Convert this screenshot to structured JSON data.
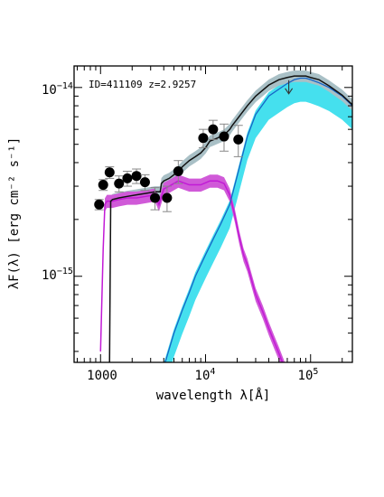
{
  "chart_data": {
    "type": "line",
    "title": "",
    "annotation": "ID=411109 z=2.9257",
    "xlabel": "wavelength λ[Å]",
    "ylabel": "λF(λ) [erg cm⁻² s⁻¹]",
    "x_scale": "log",
    "y_scale": "log",
    "xlim": [
      560,
      250000
    ],
    "ylim": [
      3.5e-16,
      1.3e-14
    ],
    "xticks": [
      {
        "value": 1000,
        "label": "1000"
      },
      {
        "value": 10000,
        "base": "10",
        "exp": "4"
      },
      {
        "value": 100000,
        "base": "10",
        "exp": "5"
      }
    ],
    "yticks": [
      {
        "value": 1e-15,
        "base": "10",
        "exp": "−15"
      },
      {
        "value": 1e-14,
        "base": "10",
        "exp": "−14"
      }
    ],
    "colors": {
      "stellar": "#c21ad6",
      "stellar_band": "#d05ad8",
      "dust": "#1565c8",
      "dust_band": "#45e0ee",
      "total": "#111111",
      "total_band": "#a9c0c6",
      "points": "#000000",
      "errorbars": "#888888"
    },
    "series": [
      {
        "x": [
          1000,
          1060,
          1100,
          1150,
          1216,
          1300,
          1500,
          1800,
          2200,
          2700,
          3300,
          3600,
          4000,
          4500,
          5500,
          7000,
          9000,
          11000,
          13000,
          15000,
          17000,
          19000,
          21000,
          23000,
          25000,
          30000,
          35000,
          40000,
          45000,
          50000,
          60000
        ],
        "y": [
          4e-16,
          1.4e-15,
          2.4e-15,
          2.5e-15,
          2.5e-15,
          2.5e-15,
          2.55e-15,
          2.6e-15,
          2.6e-15,
          2.65e-15,
          2.7e-15,
          2.4e-15,
          2.9e-15,
          3e-15,
          3.2e-15,
          3.05e-15,
          3.05e-15,
          3.2e-15,
          3.2e-15,
          3.1e-15,
          2.7e-15,
          2.1e-15,
          1.6e-15,
          1.3e-15,
          1.15e-15,
          8e-16,
          6.5e-16,
          5.3e-16,
          4.5e-16,
          3.9e-16,
          3e-16
        ],
        "band_fraction": 0.08
      },
      {
        "x": [
          3500,
          4000,
          5000,
          6000,
          7000,
          8000,
          10000,
          12000,
          14000,
          17000,
          20000,
          25000,
          30000,
          40000,
          50000,
          60000,
          70000,
          80000,
          90000,
          100000,
          120000,
          150000,
          200000,
          250000
        ],
        "y": [
          2e-16,
          3.3e-16,
          5e-16,
          6.6e-16,
          8.2e-16,
          1e-15,
          1.3e-15,
          1.6e-15,
          1.9e-15,
          2.4e-15,
          3.4e-15,
          5.5e-15,
          7.2e-15,
          9e-15,
          9.8e-15,
          1.05e-14,
          1.1e-14,
          1.12e-14,
          1.12e-14,
          1.1e-14,
          1.06e-14,
          1e-14,
          9e-15,
          8e-15
        ],
        "band_fraction_low": 0.25,
        "band_fraction_high": 0.05
      },
      {
        "x": [
          1216,
          1250,
          1300,
          1500,
          1800,
          2200,
          2700,
          3300,
          3700,
          3800,
          4000,
          4500,
          5000,
          5500,
          6000,
          7000,
          8000,
          9000,
          10000,
          11000,
          12000,
          13000,
          14000,
          15000,
          16000,
          17000,
          18000,
          20000,
          25000,
          30000,
          40000,
          50000,
          60000,
          70000,
          80000,
          90000,
          100000,
          120000,
          150000,
          200000,
          250000
        ],
        "y": [
          3e-16,
          2.5e-15,
          2.55e-15,
          2.6e-15,
          2.65e-15,
          2.7e-15,
          2.75e-15,
          2.8e-15,
          2.8e-15,
          3.1e-15,
          3.2e-15,
          3.3e-15,
          3.45e-15,
          3.6e-15,
          3.8e-15,
          4.1e-15,
          4.3e-15,
          4.5e-15,
          4.8e-15,
          5.2e-15,
          5.3e-15,
          5.4e-15,
          5.5e-15,
          5.6e-15,
          5.8e-15,
          6e-15,
          6.3e-15,
          6.8e-15,
          8e-15,
          9e-15,
          1.03e-14,
          1.1e-14,
          1.13e-14,
          1.15e-14,
          1.15e-14,
          1.15e-14,
          1.13e-14,
          1.1e-14,
          1.02e-14,
          9.1e-15,
          8.1e-15
        ],
        "band_fraction": 0.07
      }
    ],
    "points": [
      {
        "x": 970,
        "y": 2.4e-15,
        "yerr": 1.5e-16
      },
      {
        "x": 1060,
        "y": 3.05e-15,
        "yerr": 2e-16
      },
      {
        "x": 1220,
        "y": 3.55e-15,
        "yerr": 2.5e-16
      },
      {
        "x": 1500,
        "y": 3.1e-15,
        "yerr": 3e-16
      },
      {
        "x": 1800,
        "y": 3.3e-15,
        "yerr": 3e-16
      },
      {
        "x": 2200,
        "y": 3.4e-15,
        "yerr": 3e-16
      },
      {
        "x": 2650,
        "y": 3.15e-15,
        "yerr": 3e-16
      },
      {
        "x": 3300,
        "y": 2.6e-15,
        "yerr": 3.5e-16
      },
      {
        "x": 4300,
        "y": 2.6e-15,
        "yerr": 4e-16
      },
      {
        "x": 5500,
        "y": 3.6e-15,
        "yerr": 5e-16
      },
      {
        "x": 9500,
        "y": 5.4e-15,
        "yerr": 6e-16
      },
      {
        "x": 11800,
        "y": 6e-15,
        "yerr": 7e-16
      },
      {
        "x": 15000,
        "y": 5.5e-15,
        "yerr": 9e-16
      },
      {
        "x": 20500,
        "y": 5.3e-15,
        "yerr": 1e-15
      }
    ],
    "upper_limits": [
      {
        "x": 62000,
        "y": 1e-14
      }
    ],
    "grid": false,
    "legend": "none"
  }
}
